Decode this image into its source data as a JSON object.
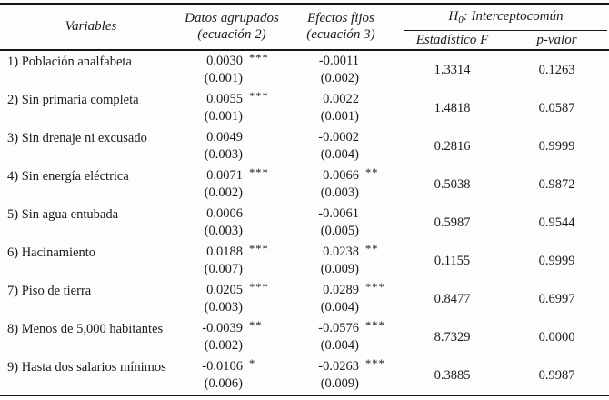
{
  "colors": {
    "text": "#1b1b1b",
    "rule": "#161616",
    "background": "#fdfdfc"
  },
  "table": {
    "header": {
      "variables": "Variables",
      "agrupados_line1": "Datos agrupados",
      "agrupados_line2": "(ecuación 2)",
      "fijos_line1": "Efectos fijos",
      "fijos_line2": "(ecuación 3)",
      "h0_prefix": "H",
      "h0_sub": "0",
      "h0_rest": ": Interceptocomún",
      "f_stat": "Estadístico F",
      "p_value": "p-valor"
    },
    "rows": [
      {
        "label": "1) Población analfabeta",
        "g_coef": "0.0030",
        "g_stars": "***",
        "g_se": "(0.001)",
        "f_coef": "-0.0011",
        "f_stars": "",
        "f_se": "(0.002)",
        "f_stat": "1.3314",
        "p_value": "0.1263"
      },
      {
        "label": "2) Sin primaria completa",
        "g_coef": "0.0055",
        "g_stars": "***",
        "g_se": "(0.001)",
        "f_coef": "0.0022",
        "f_stars": "",
        "f_se": "(0.001)",
        "f_stat": "1.4818",
        "p_value": "0.0587"
      },
      {
        "label": "3) Sin drenaje ni excusado",
        "g_coef": "0.0049",
        "g_stars": "",
        "g_se": "(0.003)",
        "f_coef": "-0.0002",
        "f_stars": "",
        "f_se": "(0.004)",
        "f_stat": "0.2816",
        "p_value": "0.9999"
      },
      {
        "label": "4) Sin energía eléctrica",
        "g_coef": "0.0071",
        "g_stars": "***",
        "g_se": "(0.002)",
        "f_coef": "0.0066",
        "f_stars": "**",
        "f_se": "(0.003)",
        "f_stat": "0.5038",
        "p_value": "0.9872"
      },
      {
        "label": "5) Sin agua entubada",
        "g_coef": "0.0006",
        "g_stars": "",
        "g_se": "(0.003)",
        "f_coef": "-0.0061",
        "f_stars": "",
        "f_se": "(0.005)",
        "f_stat": "0.5987",
        "p_value": "0.9544"
      },
      {
        "label": "6) Hacinamiento",
        "g_coef": "0.0188",
        "g_stars": "***",
        "g_se": "(0.007)",
        "f_coef": "0.0238",
        "f_stars": "**",
        "f_se": "(0.009)",
        "f_stat": "0.1155",
        "p_value": "0.9999"
      },
      {
        "label": "7) Piso de tierra",
        "g_coef": "0.0205",
        "g_stars": "***",
        "g_se": "(0.003)",
        "f_coef": "0.0289",
        "f_stars": "***",
        "f_se": "(0.004)",
        "f_stat": "0.8477",
        "p_value": "0.6997"
      },
      {
        "label": "8) Menos de 5,000 habitantes",
        "g_coef": "-0.0039",
        "g_stars": "**",
        "g_se": "(0.002)",
        "f_coef": "-0.0576",
        "f_stars": "***",
        "f_se": "(0.004)",
        "f_stat": "8.7329",
        "p_value": "0.0000"
      },
      {
        "label": "9) Hasta dos salarios mínimos",
        "g_coef": "-0.0106",
        "g_stars": "*",
        "g_se": "(0.006)",
        "f_coef": "-0.0263",
        "f_stars": "***",
        "f_se": "(0.009)",
        "f_stat": "0.3885",
        "p_value": "0.9987"
      }
    ]
  }
}
